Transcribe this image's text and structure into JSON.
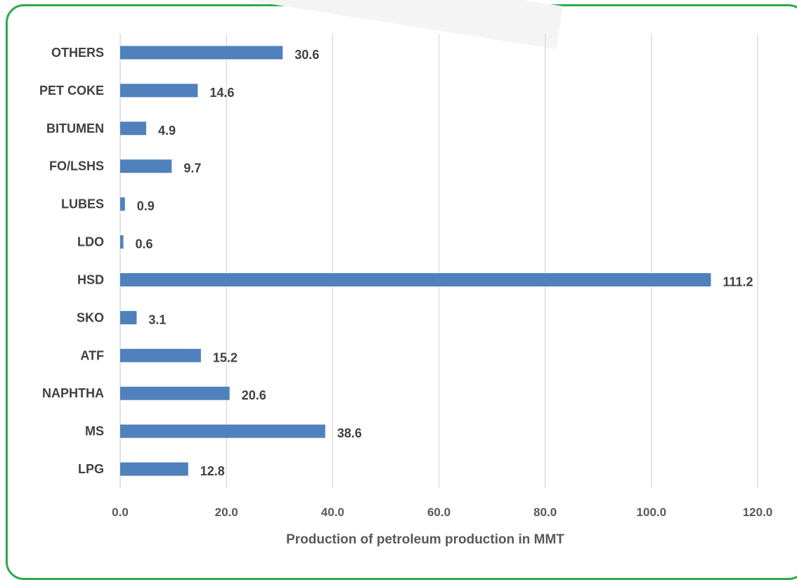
{
  "chart_data": {
    "type": "bar",
    "orientation": "horizontal",
    "categories": [
      "OTHERS",
      "PET COKE",
      "BITUMEN",
      "FO/LSHS",
      "LUBES",
      "LDO",
      "HSD",
      "SKO",
      "ATF",
      "NAPHTHA",
      "MS",
      "LPG"
    ],
    "values": [
      30.6,
      14.6,
      4.9,
      9.7,
      0.9,
      0.6,
      111.2,
      3.1,
      15.2,
      20.6,
      38.6,
      12.8
    ],
    "value_labels": [
      "30.6",
      "14.6",
      "4.9",
      "9.7",
      "0.9",
      "0.6",
      "111.2",
      "3.1",
      "15.2",
      "20.6",
      "38.6",
      "12.8"
    ],
    "xlabel": "Production of petroleum production in MMT",
    "xlim": [
      0,
      120
    ],
    "xticks": [
      "0.0",
      "20.0",
      "40.0",
      "60.0",
      "80.0",
      "100.0",
      "120.0"
    ],
    "grid": "vertical",
    "bar_color": "#4f81bd",
    "grid_color": "#d9d9d9",
    "frame_color": "#2eaa4a"
  }
}
